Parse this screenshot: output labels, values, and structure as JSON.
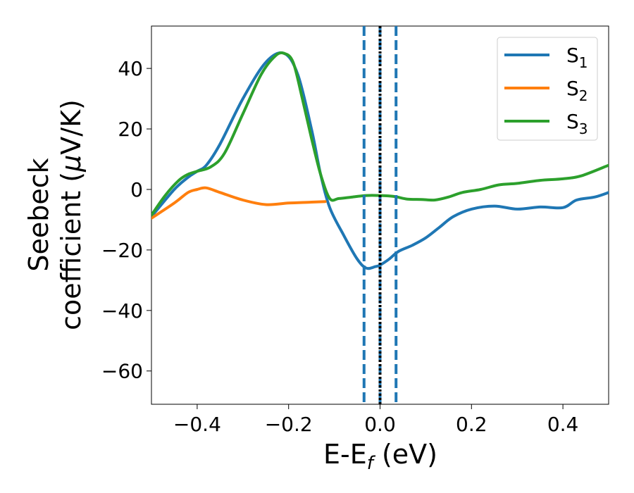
{
  "chart_data": {
    "type": "line",
    "title": "",
    "xlabel": {
      "main": "E-E",
      "sub": "f",
      "tail": " (eV)"
    },
    "ylabel": {
      "line1": "Seebeck",
      "line2": "coefficient  (",
      "mu": "μ",
      "unit": "V/K)"
    },
    "xlim": [
      -0.5,
      0.5
    ],
    "ylim": [
      -71,
      54
    ],
    "xticks": [
      -0.4,
      -0.2,
      0.0,
      0.2,
      0.4
    ],
    "xtick_labels": [
      "−0.4",
      "−0.2",
      "0.0",
      "0.2",
      "0.4"
    ],
    "yticks": [
      -60,
      -40,
      -20,
      0,
      20,
      40
    ],
    "ytick_labels": [
      "−60",
      "−40",
      "−20",
      "0",
      "20",
      "40"
    ],
    "grid": false,
    "legend_position": "top-right",
    "vlines": [
      {
        "x": -0.035,
        "style": "dashed",
        "color": "#1f77b4"
      },
      {
        "x": 0.0,
        "style": "dashed",
        "color": "#1f77b4"
      },
      {
        "x": 0.0,
        "style": "dotted",
        "color": "#000000"
      },
      {
        "x": 0.035,
        "style": "dashed",
        "color": "#1f77b4"
      }
    ],
    "series": [
      {
        "name": "S",
        "sub": "1",
        "color": "#1f77b4",
        "points": [
          [
            -0.5,
            -9
          ],
          [
            -0.45,
            0
          ],
          [
            -0.42,
            4
          ],
          [
            -0.4,
            6
          ],
          [
            -0.38,
            8
          ],
          [
            -0.35,
            15
          ],
          [
            -0.3,
            30
          ],
          [
            -0.25,
            42
          ],
          [
            -0.21,
            45
          ],
          [
            -0.18,
            38
          ],
          [
            -0.15,
            20
          ],
          [
            -0.13,
            5
          ],
          [
            -0.11,
            -6
          ],
          [
            -0.08,
            -15
          ],
          [
            -0.05,
            -23
          ],
          [
            -0.03,
            -26
          ],
          [
            -0.01,
            -25.5
          ],
          [
            0.0,
            -25
          ],
          [
            0.02,
            -23
          ],
          [
            0.04,
            -20.5
          ],
          [
            0.07,
            -18.5
          ],
          [
            0.1,
            -16
          ],
          [
            0.13,
            -12.5
          ],
          [
            0.16,
            -9
          ],
          [
            0.2,
            -6.5
          ],
          [
            0.25,
            -5.5
          ],
          [
            0.3,
            -6.5
          ],
          [
            0.35,
            -5.8
          ],
          [
            0.4,
            -6
          ],
          [
            0.43,
            -3.5
          ],
          [
            0.47,
            -2.5
          ],
          [
            0.5,
            -1
          ]
        ]
      },
      {
        "name": "S",
        "sub": "2",
        "color": "#ff7f0e",
        "points": [
          [
            -0.5,
            -9.5
          ],
          [
            -0.45,
            -4.5
          ],
          [
            -0.42,
            -1
          ],
          [
            -0.4,
            0
          ],
          [
            -0.38,
            0.5
          ],
          [
            -0.35,
            -1
          ],
          [
            -0.3,
            -3.5
          ],
          [
            -0.25,
            -5
          ],
          [
            -0.2,
            -4.5
          ],
          [
            -0.15,
            -4.2
          ],
          [
            -0.12,
            -4
          ]
        ]
      },
      {
        "name": "S",
        "sub": "3",
        "color": "#2ca02c",
        "points": [
          [
            -0.5,
            -8.5
          ],
          [
            -0.47,
            -2
          ],
          [
            -0.44,
            3
          ],
          [
            -0.42,
            5
          ],
          [
            -0.4,
            6
          ],
          [
            -0.37,
            7.5
          ],
          [
            -0.34,
            12
          ],
          [
            -0.3,
            25
          ],
          [
            -0.26,
            38
          ],
          [
            -0.23,
            44
          ],
          [
            -0.21,
            45
          ],
          [
            -0.19,
            42
          ],
          [
            -0.17,
            30
          ],
          [
            -0.15,
            17
          ],
          [
            -0.13,
            5
          ],
          [
            -0.11,
            -3
          ],
          [
            -0.09,
            -3
          ],
          [
            -0.06,
            -2.5
          ],
          [
            -0.03,
            -2
          ],
          [
            0.0,
            -2
          ],
          [
            0.03,
            -2.3
          ],
          [
            0.06,
            -3.2
          ],
          [
            0.09,
            -3.3
          ],
          [
            0.12,
            -3.5
          ],
          [
            0.15,
            -2.5
          ],
          [
            0.18,
            -1
          ],
          [
            0.22,
            0
          ],
          [
            0.26,
            1.5
          ],
          [
            0.3,
            2
          ],
          [
            0.35,
            3
          ],
          [
            0.4,
            3.5
          ],
          [
            0.44,
            4.5
          ],
          [
            0.5,
            8
          ]
        ]
      }
    ]
  }
}
